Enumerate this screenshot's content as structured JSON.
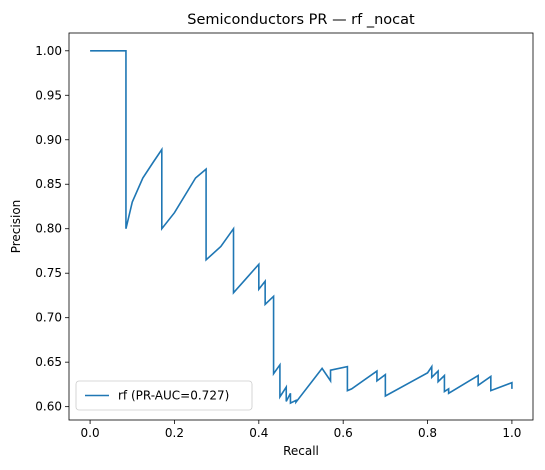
{
  "chart_data": {
    "type": "line",
    "title": "Semiconductors PR — rf _nocat",
    "xlabel": "Recall",
    "ylabel": "Precision",
    "xlim": [
      -0.05,
      1.05
    ],
    "ylim": [
      0.585,
      1.02
    ],
    "xticks": [
      0.0,
      0.2,
      0.4,
      0.6,
      0.8,
      1.0
    ],
    "xtick_labels": [
      "0.0",
      "0.2",
      "0.4",
      "0.6",
      "0.8",
      "1.0"
    ],
    "yticks": [
      0.6,
      0.65,
      0.7,
      0.75,
      0.8,
      0.85,
      0.9,
      0.95,
      1.0
    ],
    "ytick_labels": [
      "0.60",
      "0.65",
      "0.70",
      "0.75",
      "0.80",
      "0.85",
      "0.90",
      "0.95",
      "1.00"
    ],
    "grid": false,
    "legend_position": "lower-left",
    "series": [
      {
        "name": "rf (PR-AUC=0.727)",
        "color": "#1f77b4",
        "x": [
          0.0,
          0.085,
          0.085,
          0.1,
          0.125,
          0.15,
          0.17,
          0.17,
          0.2,
          0.25,
          0.275,
          0.275,
          0.31,
          0.34,
          0.34,
          0.37,
          0.4,
          0.4,
          0.415,
          0.415,
          0.435,
          0.435,
          0.45,
          0.45,
          0.465,
          0.465,
          0.475,
          0.475,
          0.488,
          0.488,
          0.55,
          0.57,
          0.57,
          0.61,
          0.61,
          0.62,
          0.68,
          0.68,
          0.7,
          0.7,
          0.8,
          0.81,
          0.81,
          0.825,
          0.825,
          0.84,
          0.84,
          0.85,
          0.85,
          0.92,
          0.92,
          0.95,
          0.95,
          1.0,
          1.0
        ],
        "y": [
          1.0,
          1.0,
          0.8,
          0.83,
          0.857,
          0.875,
          0.889,
          0.8,
          0.818,
          0.857,
          0.867,
          0.765,
          0.78,
          0.8,
          0.728,
          0.744,
          0.76,
          0.732,
          0.741,
          0.715,
          0.724,
          0.637,
          0.647,
          0.611,
          0.622,
          0.606,
          0.615,
          0.604,
          0.607,
          0.605,
          0.643,
          0.629,
          0.641,
          0.645,
          0.618,
          0.62,
          0.64,
          0.629,
          0.636,
          0.612,
          0.638,
          0.645,
          0.633,
          0.64,
          0.628,
          0.635,
          0.617,
          0.62,
          0.615,
          0.635,
          0.624,
          0.634,
          0.618,
          0.627,
          0.62
        ]
      }
    ]
  }
}
